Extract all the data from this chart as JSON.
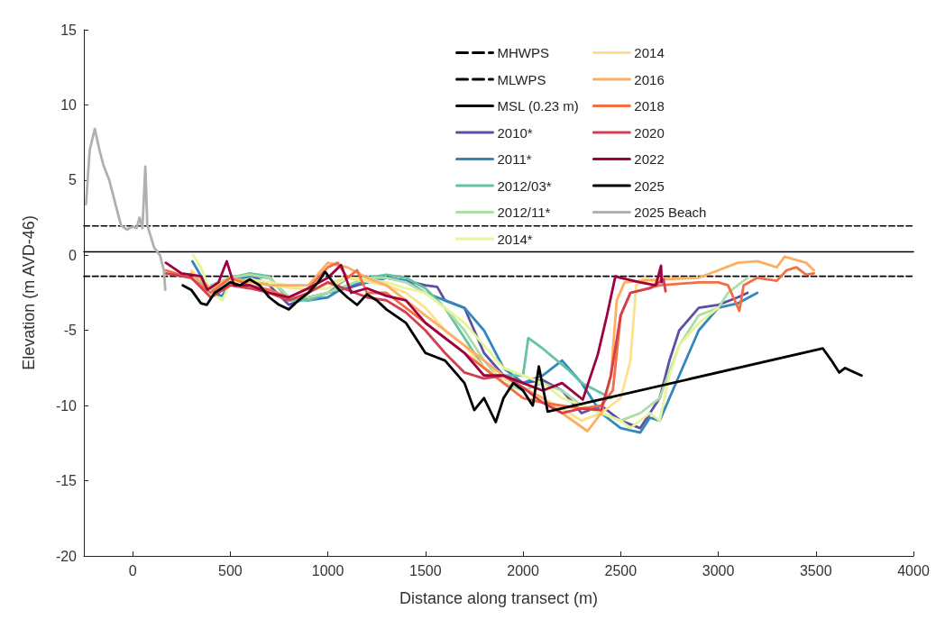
{
  "chart_data": {
    "type": "line",
    "xlabel": "Distance along transect (m)",
    "ylabel": "Elevation (m AVD-46)",
    "xlim": [
      -250,
      4000
    ],
    "xticks": [
      0,
      500,
      1000,
      1500,
      2000,
      2500,
      3000,
      3500,
      4000
    ],
    "ylim": [
      -20,
      15
    ],
    "yticks": [
      -20,
      -15,
      -10,
      -5,
      0,
      5,
      10,
      15
    ],
    "grid": false,
    "legend": "top right",
    "marker": "none",
    "series": [
      {
        "name": "MHWPS",
        "color": "#000000",
        "line_style": "dashed",
        "x": [
          -250,
          4000
        ],
        "values": [
          1.95,
          1.95
        ]
      },
      {
        "name": "MLWPS",
        "color": "#000000",
        "line_style": "dashed",
        "x": [
          -250,
          4000
        ],
        "values": [
          -1.4,
          -1.4
        ]
      },
      {
        "name": "MSL (0.23 m)",
        "color": "#000000",
        "line_style": "solid",
        "x": [
          -250,
          4000
        ],
        "values": [
          0.23,
          0.23
        ]
      },
      {
        "name": "2010*",
        "color": "#5e4fa2",
        "x": [
          300,
          400,
          500,
          600,
          700,
          800,
          900,
          1000,
          1100,
          1200,
          1300,
          1400,
          1500,
          1560,
          1600,
          1700,
          1800,
          1900,
          2000,
          2100,
          2200,
          2300,
          2400,
          2500,
          2600,
          2650,
          2700,
          2750,
          2800,
          2900,
          3000,
          3100,
          3150
        ],
        "values": [
          -1.2,
          -2.3,
          -1.6,
          -1.3,
          -2.0,
          -3.3,
          -2.8,
          -2.5,
          -2.2,
          -1.8,
          -1.5,
          -1.7,
          -2.0,
          -2.1,
          -3.0,
          -3.5,
          -6.5,
          -8.0,
          -8.5,
          -8.3,
          -9.0,
          -10.5,
          -10.0,
          -11.0,
          -11.5,
          -10.5,
          -9.5,
          -7.0,
          -5.0,
          -3.5,
          -3.3,
          -2.8,
          -2.5
        ]
      },
      {
        "name": "2011*",
        "color": "#3288bd",
        "x": [
          306,
          400,
          459,
          500,
          600,
          700,
          800,
          900,
          1000,
          1100,
          1200,
          1300,
          1400,
          1500,
          1600,
          1700,
          1800,
          1900,
          2000,
          2100,
          2200,
          2300,
          2400,
          2500,
          2600,
          2650,
          2700,
          2800,
          2900,
          3000,
          3100,
          3200
        ],
        "values": [
          -0.4,
          -2.5,
          -2.7,
          -1.8,
          -1.4,
          -1.5,
          -2.8,
          -3.0,
          -2.8,
          -2.0,
          -1.8,
          -1.5,
          -1.7,
          -2.5,
          -3.0,
          -3.5,
          -5.0,
          -7.5,
          -8.5,
          -8.0,
          -7.0,
          -8.5,
          -10.5,
          -11.5,
          -11.8,
          -10.8,
          -11.0,
          -8.0,
          -5.0,
          -3.5,
          -3.2,
          -2.5
        ]
      },
      {
        "name": "2012/03*",
        "color": "#66c2a5",
        "x": [
          300,
          400,
          500,
          600,
          700,
          800,
          900,
          1000,
          1100,
          1200,
          1300,
          1400,
          1500,
          1600,
          1700,
          1800,
          1850,
          2000,
          2027,
          2100,
          2230,
          2300,
          2450
        ],
        "values": [
          -1.2,
          -2.3,
          -1.5,
          -1.2,
          -1.4,
          -3.0,
          -3.0,
          -2.5,
          -1.5,
          -1.5,
          -1.3,
          -1.5,
          -2.2,
          -3.5,
          -5.5,
          -7.5,
          -8.0,
          -8.0,
          -5.5,
          -6.2,
          -7.6,
          -8.5,
          -9.5
        ]
      },
      {
        "name": "2012/11*",
        "color": "#abdda4",
        "x": [
          400,
          500,
          600,
          700,
          800,
          900,
          1000,
          1100,
          1200,
          1300,
          1400,
          1500,
          1600,
          1700,
          1800,
          1900,
          2000,
          2100,
          2200,
          2300,
          2400,
          2500,
          2600,
          2700,
          2800,
          2900,
          3000,
          3050,
          3100,
          3150
        ],
        "values": [
          -2.0,
          -1.5,
          -1.3,
          -1.5,
          -2.8,
          -2.8,
          -2.5,
          -2.0,
          -1.5,
          -1.5,
          -1.8,
          -2.5,
          -3.5,
          -5.0,
          -7.0,
          -8.5,
          -9.0,
          -8.5,
          -9.0,
          -10.0,
          -10.5,
          -11.0,
          -10.5,
          -9.5,
          -6.0,
          -4.0,
          -3.5,
          -2.5,
          -2.0,
          -1.5
        ]
      },
      {
        "name": "2014*",
        "color": "#e6f598",
        "x": [
          310,
          350,
          400,
          460,
          500,
          600,
          700,
          800,
          900,
          1000,
          1100,
          1200,
          1300,
          1400,
          1500,
          1600,
          1700,
          1800,
          1900,
          2000,
          2100,
          2200,
          2300,
          2400,
          2500,
          2550,
          2650,
          2700,
          2750,
          2800,
          2900,
          3000
        ],
        "values": [
          0.0,
          -0.8,
          -2.5,
          -3.0,
          -1.8,
          -1.6,
          -1.8,
          -2.0,
          -2.3,
          -2.2,
          -1.5,
          -1.6,
          -1.8,
          -2.2,
          -2.5,
          -3.5,
          -4.5,
          -6.0,
          -7.5,
          -8.0,
          -8.5,
          -9.5,
          -10.0,
          -10.5,
          -11.0,
          -11.5,
          -10.5,
          -11.0,
          -8.0,
          -6.0,
          -4.5,
          -3.5
        ]
      },
      {
        "name": "2014",
        "color": "#fee08b",
        "x": [
          300,
          400,
          500,
          700,
          900,
          1100,
          1300,
          1400,
          1500,
          1600,
          1700,
          1800,
          1900,
          2000,
          2100,
          2200,
          2300,
          2400,
          2500,
          2550,
          2580,
          2620,
          2680
        ],
        "values": [
          -1.0,
          -2.2,
          -1.6,
          -2.0,
          -2.3,
          -1.5,
          -2.0,
          -2.5,
          -3.5,
          -5.0,
          -6.0,
          -7.5,
          -8.2,
          -8.8,
          -9.5,
          -10.2,
          -11.0,
          -10.5,
          -9.5,
          -7.0,
          -2.0,
          -1.5,
          -1.8
        ]
      },
      {
        "name": "2016",
        "color": "#fdae61",
        "x": [
          300,
          400,
          500,
          700,
          900,
          1000,
          1100,
          1200,
          1300,
          1400,
          1500,
          1600,
          1700,
          1800,
          1900,
          2000,
          2100,
          2200,
          2330,
          2400,
          2450,
          2480,
          2520,
          2700,
          2900,
          3000,
          3100,
          3200,
          3300,
          3340,
          3450,
          3490
        ],
        "values": [
          -1.2,
          -2.2,
          -1.5,
          -2.0,
          -2.0,
          -0.5,
          -0.8,
          -1.5,
          -2.0,
          -3.0,
          -4.0,
          -5.0,
          -6.0,
          -7.0,
          -8.0,
          -8.8,
          -9.5,
          -10.5,
          -11.7,
          -10.5,
          -8.0,
          -3.0,
          -1.8,
          -1.6,
          -1.5,
          -1.0,
          -0.5,
          -0.4,
          -0.8,
          -0.1,
          -0.5,
          -1.0
        ]
      },
      {
        "name": "2018",
        "color": "#f46d43",
        "x": [
          170,
          300,
          400,
          500,
          600,
          700,
          800,
          900,
          1000,
          1050,
          1100,
          1150,
          1200,
          1300,
          1400,
          1500,
          1600,
          1700,
          1800,
          1900,
          2000,
          2100,
          2200,
          2300,
          2400,
          2460,
          2500,
          2550,
          2700,
          2900,
          3000,
          3050,
          3108,
          3130,
          3200,
          3300,
          3350,
          3400,
          3450,
          3490
        ],
        "values": [
          -1.0,
          -1.5,
          -2.5,
          -1.5,
          -2.0,
          -2.3,
          -2.8,
          -2.2,
          -0.8,
          -0.5,
          -1.5,
          -1.0,
          -2.5,
          -2.5,
          -3.5,
          -4.5,
          -5.5,
          -6.5,
          -7.5,
          -8.5,
          -9.5,
          -9.8,
          -10.0,
          -10.2,
          -10.0,
          -9.0,
          -4.0,
          -2.5,
          -2.0,
          -1.8,
          -1.8,
          -2.0,
          -3.7,
          -2.0,
          -1.5,
          -1.7,
          -1.0,
          -0.8,
          -1.3,
          -1.2
        ]
      },
      {
        "name": "2020",
        "color": "#d53e4f",
        "x": [
          170,
          300,
          400,
          500,
          600,
          700,
          800,
          900,
          1000,
          1100,
          1200,
          1300,
          1400,
          1500,
          1600,
          1700,
          1800,
          1900,
          2000,
          2100,
          2200,
          2300,
          2400,
          2450,
          2500,
          2550,
          2650,
          2720,
          2730
        ],
        "values": [
          -1.2,
          -1.5,
          -2.8,
          -2.0,
          -2.2,
          -2.5,
          -3.0,
          -2.5,
          -1.8,
          -2.3,
          -2.8,
          -3.0,
          -3.8,
          -5.0,
          -6.5,
          -7.8,
          -8.2,
          -8.0,
          -8.8,
          -9.8,
          -10.5,
          -10.2,
          -10.3,
          -8.0,
          -4.0,
          -2.5,
          -2.2,
          -1.6,
          -2.4
        ]
      },
      {
        "name": "2022",
        "color": "#9e0142",
        "x": [
          170,
          250,
          350,
          383,
          440,
          482,
          520,
          600,
          700,
          800,
          900,
          1000,
          1068,
          1120,
          1200,
          1300,
          1400,
          1500,
          1600,
          1700,
          1800,
          1900,
          2000,
          2100,
          2200,
          2306,
          2383,
          2430,
          2473,
          2500,
          2600,
          2680,
          2707,
          2710
        ],
        "values": [
          -0.5,
          -1.2,
          -1.4,
          -2.3,
          -1.8,
          -0.4,
          -2.0,
          -2.0,
          -2.5,
          -2.8,
          -2.2,
          -1.5,
          -0.65,
          -2.5,
          -2.2,
          -2.7,
          -3.0,
          -4.5,
          -5.5,
          -6.5,
          -8.0,
          -8.0,
          -8.5,
          -9.0,
          -8.5,
          -9.6,
          -6.6,
          -4.0,
          -1.4,
          -1.5,
          -1.8,
          -2.0,
          -0.7,
          -1.8
        ]
      },
      {
        "name": "2025",
        "color": "#000000",
        "x": [
          257,
          300,
          350,
          380,
          420,
          500,
          550,
          600,
          650,
          700,
          750,
          800,
          850,
          900,
          950,
          986,
          1050,
          1100,
          1150,
          1200,
          1250,
          1300,
          1400,
          1500,
          1600,
          1700,
          1750,
          1800,
          1860,
          1900,
          1950,
          2000,
          2050,
          2081,
          2126,
          3536,
          3580,
          3620,
          3650,
          3700,
          3734
        ],
        "values": [
          -2.0,
          -2.3,
          -3.2,
          -3.3,
          -2.5,
          -1.8,
          -2.0,
          -1.6,
          -2.0,
          -2.8,
          -3.3,
          -3.6,
          -3.0,
          -2.5,
          -1.8,
          -1.1,
          -2.2,
          -2.8,
          -3.3,
          -2.6,
          -3.0,
          -3.6,
          -4.5,
          -6.5,
          -7.0,
          -8.5,
          -10.3,
          -9.5,
          -11.1,
          -9.5,
          -8.5,
          -9.0,
          -10.0,
          -7.4,
          -10.4,
          -6.2,
          -7.0,
          -7.8,
          -7.5,
          -7.8,
          -8.0
        ]
      },
      {
        "name": "2025 Beach",
        "color": "#b0b0b0",
        "x": [
          -239,
          -220,
          -194,
          -170,
          -150,
          -120,
          -90,
          -60,
          -30,
          0,
          20,
          35,
          50,
          65,
          75,
          110,
          140,
          160,
          167
        ],
        "values": [
          3.4,
          7.0,
          8.4,
          7.0,
          6.0,
          5.0,
          3.5,
          2.0,
          1.7,
          1.9,
          1.8,
          2.5,
          1.8,
          5.9,
          2.0,
          0.5,
          0.0,
          -1.0,
          -2.3
        ]
      }
    ]
  }
}
